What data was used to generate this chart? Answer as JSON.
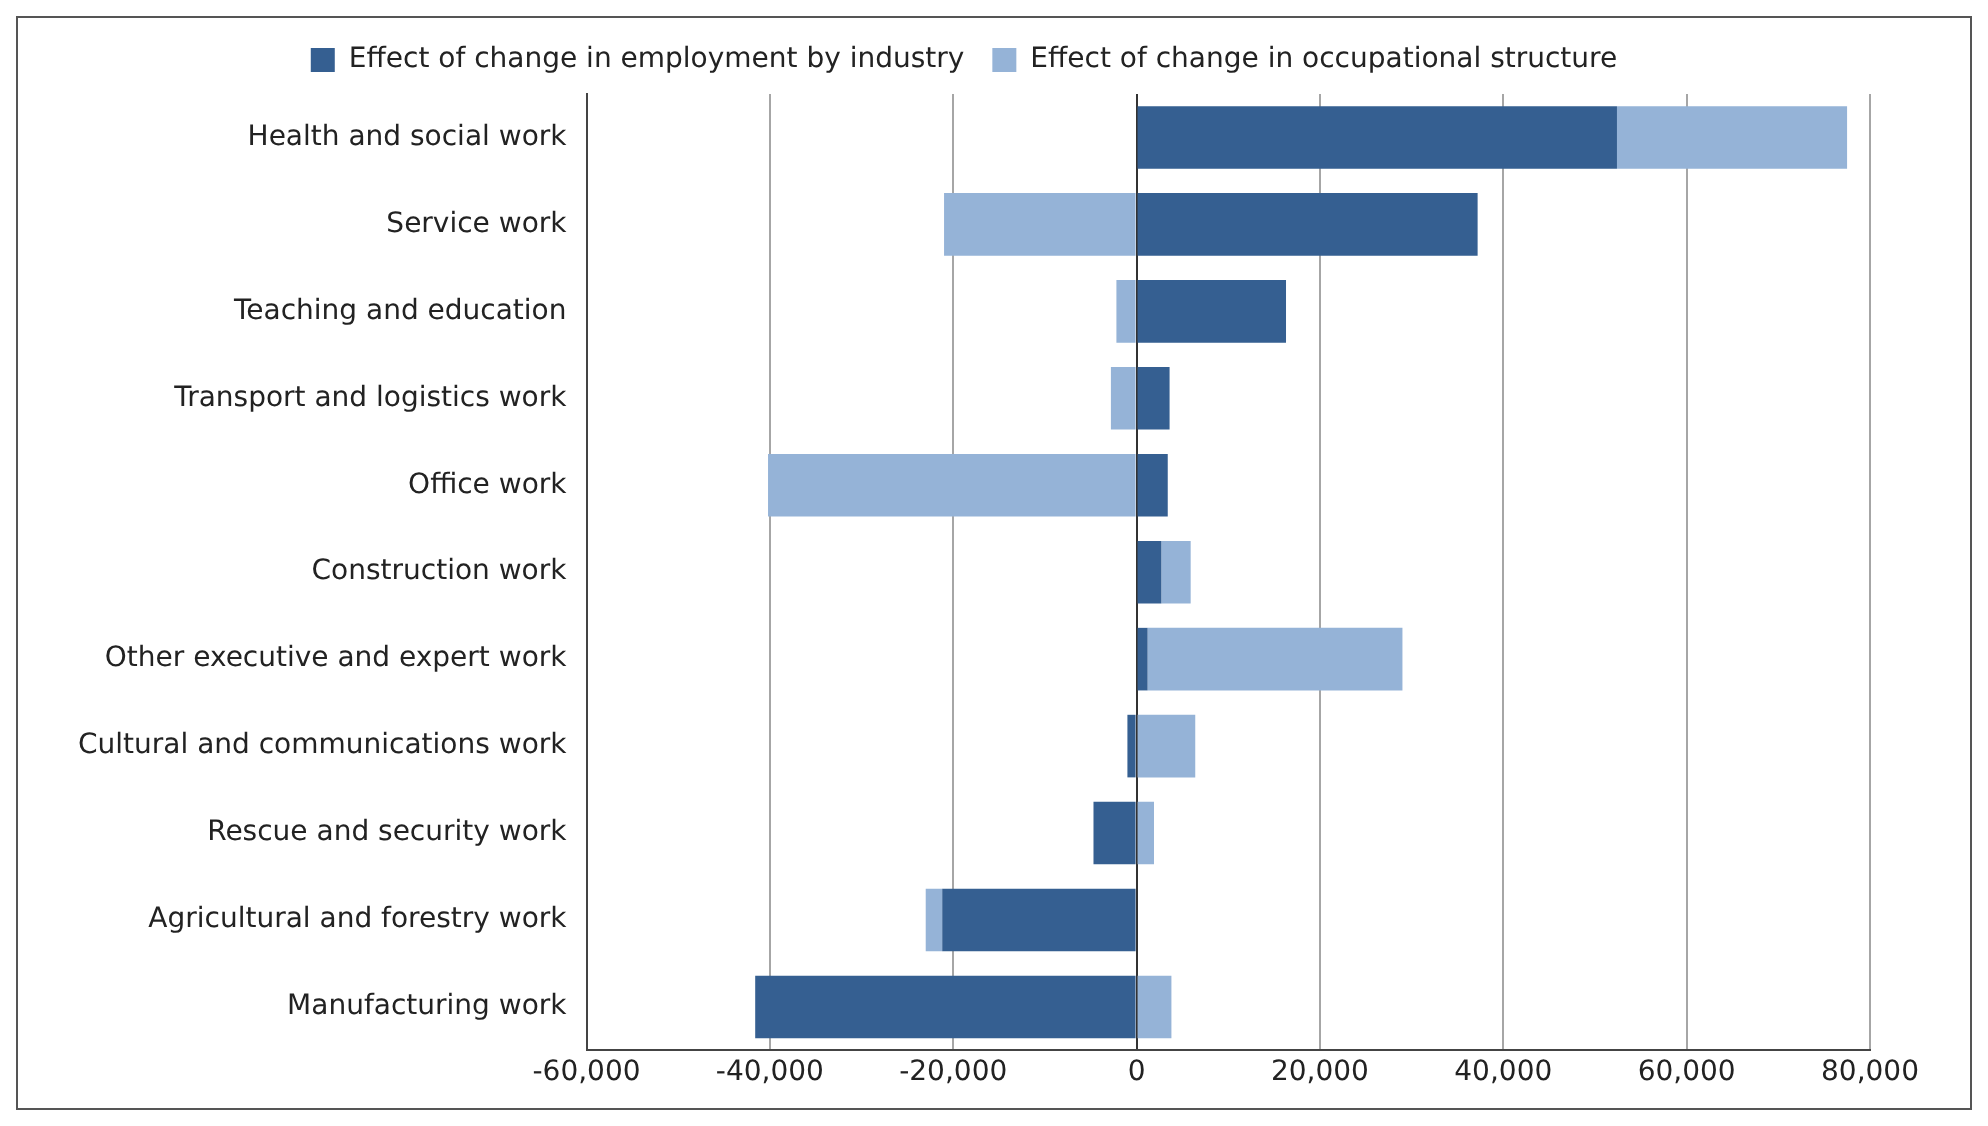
{
  "chart_data": {
    "type": "bar",
    "orientation": "horizontal",
    "stacked": true,
    "categories": [
      "Health and social work",
      "Service work",
      "Teaching and education",
      "Transport and logistics work",
      "Office work",
      "Construction work",
      "Other executive and expert work",
      "Cultural and communications work",
      "Rescue and security work",
      "Agricultural and forestry work",
      "Manufacturing work"
    ],
    "series": [
      {
        "name": "Effect of change in employment by industry",
        "color": "#355f91",
        "values": [
          52400,
          37200,
          16300,
          3600,
          3400,
          2700,
          1200,
          -1000,
          -4700,
          -21200,
          -41600
        ]
      },
      {
        "name": "Effect of change in occupational structure",
        "color": "#95b3d7",
        "values": [
          25100,
          -21000,
          -2200,
          -2800,
          -40200,
          3200,
          27800,
          6400,
          1900,
          -1800,
          3800
        ]
      }
    ],
    "xlim": [
      -60000,
      80000
    ],
    "xticks": [
      {
        "value": -60000,
        "label": "-60,000"
      },
      {
        "value": -40000,
        "label": "-40,000"
      },
      {
        "value": -20000,
        "label": "-20,000"
      },
      0,
      {
        "value": 20000,
        "label": "20,000"
      },
      {
        "value": 40000,
        "label": "40,000"
      },
      {
        "value": 60000,
        "label": "60,000"
      },
      {
        "value": 80000,
        "label": "80,000"
      }
    ],
    "grid": "x",
    "legend": "top"
  }
}
